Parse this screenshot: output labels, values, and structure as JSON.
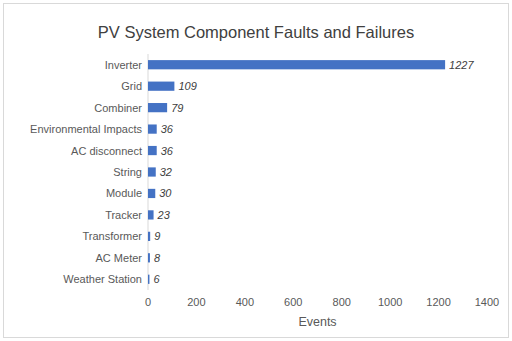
{
  "chart_data": {
    "type": "bar",
    "orientation": "horizontal",
    "title": "PV System Component Faults and Failures",
    "categories": [
      "Inverter",
      "Grid",
      "Combiner",
      "Environmental Impacts",
      "AC disconnect",
      "String",
      "Module",
      "Tracker",
      "Transformer",
      "AC Meter",
      "Weather Station"
    ],
    "values": [
      1227,
      109,
      79,
      36,
      36,
      32,
      30,
      23,
      9,
      8,
      6
    ],
    "color": "#4472c4",
    "xlabel": "Events",
    "xlim": [
      0,
      1400
    ],
    "xticks": [
      0,
      200,
      400,
      600,
      800,
      1000,
      1200,
      1400
    ],
    "grid": false,
    "data_labels": true
  }
}
